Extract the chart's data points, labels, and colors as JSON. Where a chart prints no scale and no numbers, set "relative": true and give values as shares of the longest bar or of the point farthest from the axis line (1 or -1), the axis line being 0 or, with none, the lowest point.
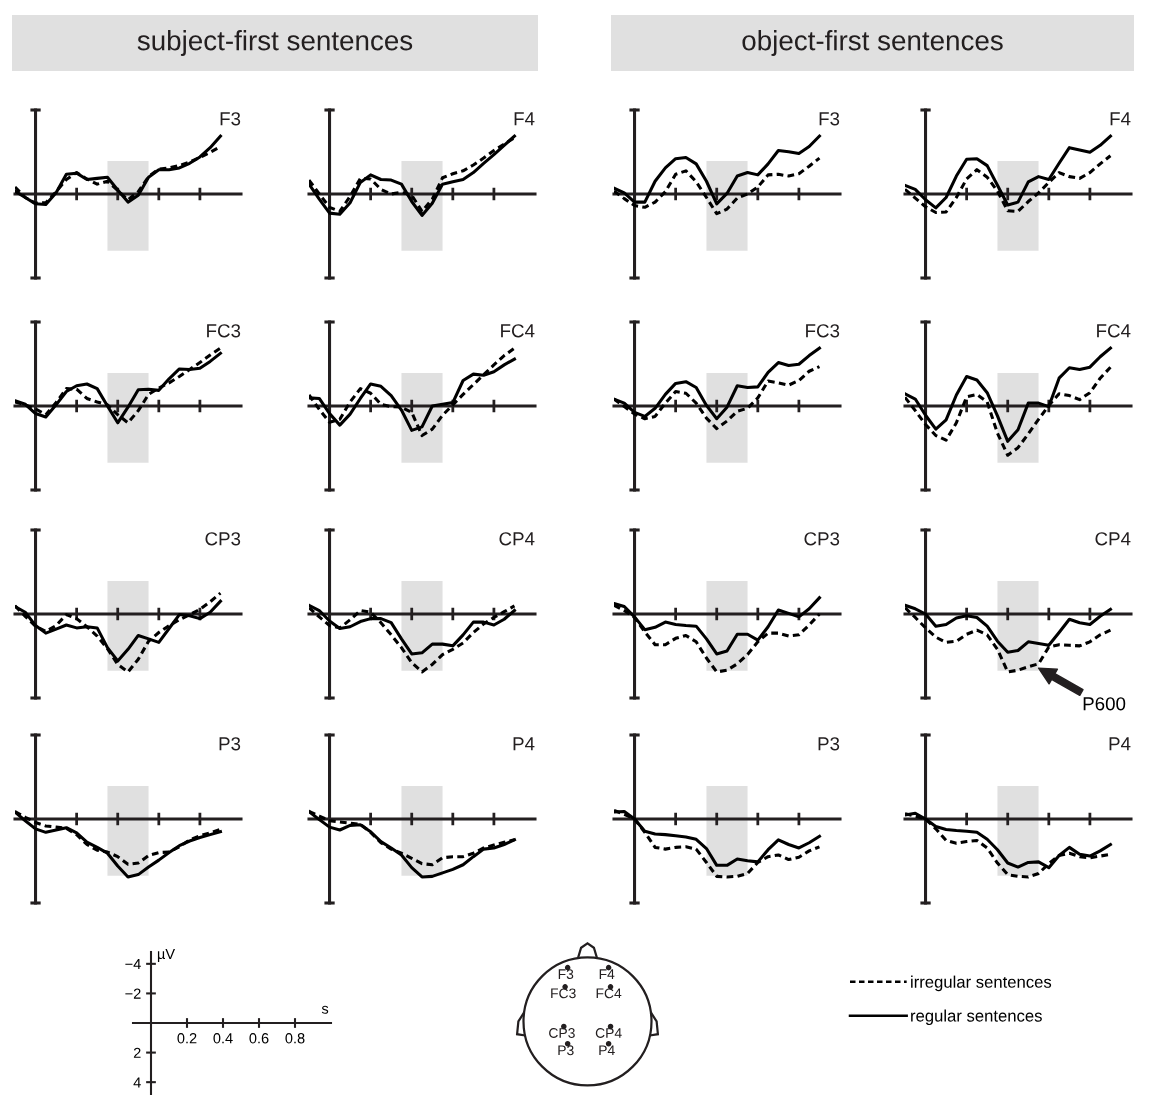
{
  "chart_data": [
    {
      "type": "line",
      "relative": true,
      "title": "F3",
      "subtitle": "subject-first sentences",
      "categories": [
        null,
        null,
        null,
        null,
        null,
        null,
        null,
        null,
        null,
        null,
        null,
        null,
        null,
        null,
        null,
        null,
        null,
        null,
        null,
        null,
        null
      ],
      "series": [
        {
          "color": "#000000",
          "line_style": "dashed",
          "values": [
            0.12,
            -0.06,
            -0.16,
            -0.15,
            0.04,
            0.25,
            0.37,
            0.26,
            0.17,
            0.22,
            0.06,
            -0.1,
            0.04,
            0.3,
            0.43,
            0.45,
            0.49,
            0.55,
            0.63,
            0.72,
            0.82
          ]
        },
        {
          "color": "#000000",
          "line_style": "solid",
          "values": [
            0.05,
            -0.06,
            -0.17,
            -0.18,
            0.02,
            0.34,
            0.36,
            0.25,
            0.27,
            0.29,
            0.07,
            -0.14,
            -0.02,
            0.29,
            0.42,
            0.42,
            0.45,
            0.53,
            0.64,
            0.8,
            1
          ]
        }
      ]
    },
    {
      "type": "line",
      "relative": true,
      "title": "F4",
      "categories": [
        null,
        null,
        null,
        null,
        null,
        null,
        null,
        null,
        null,
        null,
        null,
        null,
        null,
        null,
        null,
        null,
        null,
        null,
        null,
        null,
        null
      ],
      "series": [
        {
          "color": "#000000",
          "line_style": "dashed",
          "values": [
            0.24,
            0,
            -0.23,
            -0.3,
            -0.04,
            0.27,
            0.26,
            0.08,
            0,
            0.03,
            -0.02,
            -0.3,
            -0.09,
            0.28,
            0.35,
            0.4,
            0.5,
            0.62,
            0.75,
            0.86,
            0.97
          ]
        },
        {
          "color": "#000000",
          "line_style": "solid",
          "values": [
            0.17,
            -0.09,
            -0.33,
            -0.35,
            -0.15,
            0.2,
            0.33,
            0.25,
            0.24,
            0.17,
            -0.13,
            -0.37,
            -0.16,
            0.17,
            0.21,
            0.25,
            0.37,
            0.53,
            0.68,
            0.84,
            1
          ]
        }
      ]
    },
    {
      "type": "line",
      "relative": true,
      "title": "F3",
      "subtitle": "object-first sentences",
      "categories": [
        null,
        null,
        null,
        null,
        null,
        null,
        null,
        null,
        null,
        null,
        null,
        null,
        null,
        null,
        null,
        null,
        null,
        null,
        null,
        null,
        null
      ],
      "series": [
        {
          "color": "#000000",
          "line_style": "dashed",
          "values": [
            0.05,
            -0.08,
            -0.2,
            -0.23,
            -0.14,
            0.04,
            0.34,
            0.4,
            0.21,
            -0.06,
            -0.34,
            -0.26,
            -0.07,
            0,
            0.12,
            0.33,
            0.34,
            0.31,
            0.35,
            0.48,
            0.62
          ]
        },
        {
          "color": "#000000",
          "line_style": "solid",
          "values": [
            0.1,
            0.02,
            -0.14,
            -0.14,
            0.22,
            0.45,
            0.61,
            0.63,
            0.52,
            0.22,
            -0.17,
            0.01,
            0.31,
            0.37,
            0.33,
            0.52,
            0.75,
            0.73,
            0.7,
            0.82,
            1
          ]
        }
      ]
    },
    {
      "type": "line",
      "relative": true,
      "title": "F4",
      "categories": [
        null,
        null,
        null,
        null,
        null,
        null,
        null,
        null,
        null,
        null,
        null,
        null,
        null,
        null,
        null,
        null,
        null,
        null,
        null,
        null,
        null
      ],
      "series": [
        {
          "color": "#000000",
          "line_style": "dashed",
          "values": [
            0.08,
            -0.07,
            -0.22,
            -0.32,
            -0.31,
            -0.06,
            0.26,
            0.42,
            0.29,
            0.05,
            -0.29,
            -0.3,
            -0.13,
            0.02,
            0.2,
            0.37,
            0.3,
            0.27,
            0.37,
            0.52,
            0.66
          ]
        },
        {
          "color": "#000000",
          "line_style": "solid",
          "values": [
            0.15,
            0.08,
            -0.1,
            -0.24,
            -0.06,
            0.31,
            0.6,
            0.61,
            0.49,
            0.15,
            -0.19,
            -0.14,
            0.21,
            0.3,
            0.25,
            0.53,
            0.8,
            0.76,
            0.72,
            0.84,
            1
          ]
        }
      ]
    },
    {
      "type": "line",
      "relative": true,
      "title": "FC3",
      "categories": [
        null,
        null,
        null,
        null,
        null,
        null,
        null,
        null,
        null,
        null,
        null,
        null,
        null,
        null,
        null,
        null,
        null,
        null,
        null,
        null,
        null
      ],
      "series": [
        {
          "color": "#000000",
          "line_style": "dashed",
          "values": [
            0.07,
            0.02,
            -0.05,
            -0.15,
            0.06,
            0.3,
            0.29,
            0.13,
            0.07,
            0.02,
            -0.15,
            -0.29,
            -0.08,
            0.2,
            0.31,
            0.4,
            0.51,
            0.63,
            0.75,
            0.88,
            1
          ]
        },
        {
          "color": "#000000",
          "line_style": "solid",
          "values": [
            0.09,
            0.03,
            -0.13,
            -0.19,
            0.02,
            0.25,
            0.35,
            0.38,
            0.3,
            0,
            -0.29,
            -0.02,
            0.28,
            0.29,
            0.27,
            0.47,
            0.64,
            0.63,
            0.65,
            0.77,
            0.91
          ]
        }
      ]
    },
    {
      "type": "line",
      "relative": true,
      "title": "FC4",
      "categories": [
        null,
        null,
        null,
        null,
        null,
        null,
        null,
        null,
        null,
        null,
        null,
        null,
        null,
        null,
        null,
        null,
        null,
        null,
        null,
        null,
        null
      ],
      "series": [
        {
          "color": "#000000",
          "line_style": "dashed",
          "values": [
            0.19,
            -0.06,
            -0.28,
            -0.23,
            0.07,
            0.3,
            0.22,
            0.03,
            -0.01,
            -0.02,
            -0.11,
            -0.51,
            -0.4,
            -0.16,
            0.02,
            0.2,
            0.37,
            0.54,
            0.71,
            0.87,
            1
          ]
        },
        {
          "color": "#000000",
          "line_style": "solid",
          "values": [
            0.14,
            0.13,
            -0.13,
            -0.33,
            -0.14,
            0.13,
            0.38,
            0.34,
            0.18,
            -0.07,
            -0.42,
            -0.36,
            0,
            0.03,
            0.06,
            0.44,
            0.55,
            0.53,
            0.59,
            0.71,
            0.81
          ]
        }
      ]
    },
    {
      "type": "line",
      "relative": true,
      "title": "FC3",
      "categories": [
        null,
        null,
        null,
        null,
        null,
        null,
        null,
        null,
        null,
        null,
        null,
        null,
        null,
        null,
        null,
        null,
        null,
        null,
        null,
        null,
        null
      ],
      "series": [
        {
          "color": "#000000",
          "line_style": "dashed",
          "values": [
            0.12,
            -0.01,
            -0.14,
            -0.22,
            -0.18,
            0.05,
            0.25,
            0.22,
            0.05,
            -0.21,
            -0.39,
            -0.26,
            -0.09,
            -0.04,
            0.14,
            0.43,
            0.4,
            0.36,
            0.44,
            0.6,
            0.68
          ]
        },
        {
          "color": "#000000",
          "line_style": "solid",
          "values": [
            0.12,
            0.05,
            -0.11,
            -0.18,
            -0.04,
            0.2,
            0.39,
            0.42,
            0.32,
            0.01,
            -0.22,
            -0.02,
            0.35,
            0.32,
            0.33,
            0.58,
            0.75,
            0.7,
            0.72,
            0.87,
            1
          ]
        }
      ]
    },
    {
      "type": "line",
      "relative": true,
      "title": "FC4",
      "categories": [
        null,
        null,
        null,
        null,
        null,
        null,
        null,
        null,
        null,
        null,
        null,
        null,
        null,
        null,
        null,
        null,
        null,
        null,
        null,
        null,
        null
      ],
      "series": [
        {
          "color": "#000000",
          "line_style": "dashed",
          "values": [
            0.15,
            -0.08,
            -0.32,
            -0.51,
            -0.59,
            -0.29,
            0.16,
            0.2,
            0.07,
            -0.47,
            -0.85,
            -0.72,
            -0.48,
            -0.23,
            0.01,
            0.21,
            0.18,
            0.11,
            0.23,
            0.48,
            0.67
          ]
        },
        {
          "color": "#000000",
          "line_style": "solid",
          "values": [
            0.21,
            0.12,
            -0.16,
            -0.4,
            -0.24,
            0.19,
            0.51,
            0.45,
            0.23,
            -0.17,
            -0.61,
            -0.41,
            0.05,
            0.05,
            -0.01,
            0.48,
            0.66,
            0.63,
            0.67,
            0.85,
            1
          ]
        }
      ]
    },
    {
      "type": "line",
      "relative": true,
      "title": "CP3",
      "categories": [
        null,
        null,
        null,
        null,
        null,
        null,
        null,
        null,
        null,
        null,
        null,
        null,
        null,
        null,
        null,
        null,
        null,
        null,
        null,
        null,
        null
      ],
      "series": [
        {
          "color": "#000000",
          "line_style": "dashed",
          "values": [
            0.14,
            -0.04,
            -0.21,
            -0.3,
            -0.2,
            -0.01,
            -0.08,
            -0.22,
            -0.38,
            -0.6,
            -0.87,
            -1,
            -0.78,
            -0.47,
            -0.32,
            -0.2,
            -0.1,
            -0.01,
            0.08,
            0.21,
            0.36
          ]
        },
        {
          "color": "#000000",
          "line_style": "solid",
          "values": [
            0.13,
            0.03,
            -0.2,
            -0.33,
            -0.26,
            -0.19,
            -0.24,
            -0.22,
            -0.24,
            -0.58,
            -0.81,
            -0.61,
            -0.37,
            -0.43,
            -0.49,
            -0.25,
            -0.01,
            -0.03,
            -0.08,
            0.03,
            0.22
          ]
        }
      ]
    },
    {
      "type": "line",
      "relative": true,
      "title": "CP4",
      "categories": [
        null,
        null,
        null,
        null,
        null,
        null,
        null,
        null,
        null,
        null,
        null,
        null,
        null,
        null,
        null,
        null,
        null,
        null,
        null,
        null,
        null
      ],
      "series": [
        {
          "color": "#000000",
          "line_style": "dashed",
          "values": [
            0.11,
            -0.05,
            -0.2,
            -0.24,
            -0.1,
            0.06,
            0.03,
            -0.15,
            -0.36,
            -0.58,
            -0.84,
            -1,
            -0.87,
            -0.7,
            -0.61,
            -0.5,
            -0.32,
            -0.17,
            -0.06,
            0.04,
            0.14
          ]
        },
        {
          "color": "#000000",
          "line_style": "solid",
          "values": [
            0.15,
            0.06,
            -0.12,
            -0.25,
            -0.22,
            -0.13,
            -0.08,
            -0.08,
            -0.15,
            -0.43,
            -0.69,
            -0.67,
            -0.52,
            -0.52,
            -0.55,
            -0.36,
            -0.14,
            -0.14,
            -0.19,
            -0.09,
            0.06
          ]
        }
      ]
    },
    {
      "type": "line",
      "relative": true,
      "title": "CP3",
      "categories": [
        null,
        null,
        null,
        null,
        null,
        null,
        null,
        null,
        null,
        null,
        null,
        null,
        null,
        null,
        null,
        null,
        null,
        null,
        null,
        null,
        null
      ],
      "series": [
        {
          "color": "#000000",
          "line_style": "dashed",
          "values": [
            0.15,
            0.06,
            -0.06,
            -0.31,
            -0.53,
            -0.53,
            -0.42,
            -0.37,
            -0.48,
            -0.76,
            -1,
            -0.97,
            -0.86,
            -0.7,
            -0.48,
            -0.33,
            -0.33,
            -0.38,
            -0.36,
            -0.19,
            0
          ]
        },
        {
          "color": "#000000",
          "line_style": "solid",
          "values": [
            0.18,
            0.13,
            -0.05,
            -0.27,
            -0.23,
            -0.14,
            -0.18,
            -0.2,
            -0.21,
            -0.43,
            -0.69,
            -0.64,
            -0.35,
            -0.35,
            -0.45,
            -0.22,
            0.07,
            0.01,
            -0.05,
            0.09,
            0.28
          ]
        }
      ]
    },
    {
      "type": "line",
      "relative": true,
      "title": "CP4",
      "categories": [
        null,
        null,
        null,
        null,
        null,
        null,
        null,
        null,
        null,
        null,
        null,
        null,
        null,
        null,
        null,
        null,
        null,
        null,
        null,
        null,
        null
      ],
      "annotations": [
        "P600"
      ],
      "series": [
        {
          "color": "#000000",
          "line_style": "dashed",
          "values": [
            0.11,
            -0.06,
            -0.24,
            -0.4,
            -0.49,
            -0.47,
            -0.35,
            -0.28,
            -0.36,
            -0.61,
            -1,
            -0.97,
            -0.91,
            -0.86,
            -0.57,
            -0.53,
            -0.54,
            -0.55,
            -0.48,
            -0.36,
            -0.28
          ]
        },
        {
          "color": "#000000",
          "line_style": "solid",
          "values": [
            0.15,
            0.09,
            0,
            -0.21,
            -0.18,
            -0.07,
            -0.03,
            -0.06,
            -0.21,
            -0.47,
            -0.66,
            -0.63,
            -0.48,
            -0.51,
            -0.54,
            -0.32,
            -0.09,
            -0.15,
            -0.18,
            -0.04,
            0.08
          ]
        }
      ]
    },
    {
      "type": "line",
      "relative": true,
      "title": "P3",
      "categories": [
        null,
        null,
        null,
        null,
        null,
        null,
        null,
        null,
        null,
        null,
        null,
        null,
        null,
        null,
        null,
        null,
        null,
        null,
        null,
        null,
        null
      ],
      "series": [
        {
          "color": "#000000",
          "line_style": "dashed",
          "values": [
            0.13,
            0.03,
            -0.06,
            -0.12,
            -0.14,
            -0.16,
            -0.27,
            -0.44,
            -0.54,
            -0.57,
            -0.65,
            -0.78,
            -0.76,
            -0.63,
            -0.58,
            -0.57,
            -0.48,
            -0.36,
            -0.29,
            -0.24,
            -0.18
          ]
        },
        {
          "color": "#000000",
          "line_style": "solid",
          "values": [
            0.12,
            -0.03,
            -0.17,
            -0.23,
            -0.19,
            -0.15,
            -0.24,
            -0.4,
            -0.49,
            -0.59,
            -0.81,
            -1,
            -0.96,
            -0.83,
            -0.71,
            -0.58,
            -0.46,
            -0.38,
            -0.32,
            -0.27,
            -0.22
          ]
        }
      ]
    },
    {
      "type": "line",
      "relative": true,
      "title": "P4",
      "categories": [
        null,
        null,
        null,
        null,
        null,
        null,
        null,
        null,
        null,
        null,
        null,
        null,
        null,
        null,
        null,
        null,
        null,
        null,
        null,
        null,
        null
      ],
      "series": [
        {
          "color": "#000000",
          "line_style": "dashed",
          "values": [
            0.13,
            0.05,
            -0.03,
            -0.05,
            -0.07,
            -0.09,
            -0.23,
            -0.41,
            -0.52,
            -0.59,
            -0.68,
            -0.77,
            -0.79,
            -0.67,
            -0.65,
            -0.65,
            -0.59,
            -0.5,
            -0.45,
            -0.4,
            -0.36
          ]
        },
        {
          "color": "#000000",
          "line_style": "solid",
          "values": [
            0.13,
            -0.01,
            -0.14,
            -0.19,
            -0.11,
            -0.1,
            -0.22,
            -0.39,
            -0.5,
            -0.62,
            -0.84,
            -1,
            -0.99,
            -0.93,
            -0.87,
            -0.79,
            -0.65,
            -0.52,
            -0.5,
            -0.44,
            -0.36
          ]
        }
      ]
    },
    {
      "type": "line",
      "relative": true,
      "title": "P3",
      "categories": [
        null,
        null,
        null,
        null,
        null,
        null,
        null,
        null,
        null,
        null,
        null,
        null,
        null,
        null,
        null,
        null,
        null,
        null,
        null,
        null,
        null
      ],
      "series": [
        {
          "color": "#000000",
          "line_style": "dashed",
          "values": [
            0.15,
            0.08,
            0,
            -0.23,
            -0.49,
            -0.52,
            -0.49,
            -0.48,
            -0.52,
            -0.75,
            -0.99,
            -1,
            -0.99,
            -0.94,
            -0.75,
            -0.65,
            -0.62,
            -0.7,
            -0.66,
            -0.55,
            -0.48
          ]
        },
        {
          "color": "#000000",
          "line_style": "solid",
          "values": [
            0.12,
            0.13,
            0,
            -0.21,
            -0.26,
            -0.27,
            -0.29,
            -0.31,
            -0.35,
            -0.51,
            -0.8,
            -0.8,
            -0.69,
            -0.72,
            -0.74,
            -0.53,
            -0.36,
            -0.44,
            -0.5,
            -0.41,
            -0.3
          ]
        }
      ]
    },
    {
      "type": "line",
      "relative": true,
      "title": "P4",
      "legend": "bottom left",
      "categories": [
        null,
        null,
        null,
        null,
        null,
        null,
        null,
        null,
        null,
        null,
        null,
        null,
        null,
        null,
        null,
        null,
        null,
        null,
        null,
        null,
        null
      ],
      "series": [
        {
          "name": "irregular sentences",
          "color": "#000000",
          "line_style": "dashed",
          "values": [
            0.09,
            0.05,
            0,
            -0.17,
            -0.37,
            -0.42,
            -0.39,
            -0.37,
            -0.5,
            -0.76,
            -0.96,
            -0.99,
            -1,
            -0.94,
            -0.77,
            -0.63,
            -0.59,
            -0.65,
            -0.67,
            -0.64,
            -0.61
          ]
        },
        {
          "name": "regular sentences",
          "color": "#000000",
          "line_style": "solid",
          "values": [
            0.07,
            0.1,
            0,
            -0.13,
            -0.18,
            -0.2,
            -0.21,
            -0.23,
            -0.35,
            -0.53,
            -0.76,
            -0.83,
            -0.75,
            -0.74,
            -0.84,
            -0.63,
            -0.49,
            -0.61,
            -0.64,
            -0.55,
            -0.44
          ]
        }
      ]
    },
    {
      "type": "line",
      "xlabel": "s",
      "ylabel": "µV",
      "xlim": [
        -0.1,
        1.0
      ],
      "ylim": [
        4.8,
        -4.8
      ],
      "xticks": [
        0.2,
        0.4,
        0.6,
        0.8
      ],
      "yticks": [
        {
          "value": -4,
          "label": "−4"
        },
        {
          "value": -2,
          "label": "−2"
        },
        2,
        4
      ]
    },
    {
      "type": "other",
      "annotations": [
        "F3",
        "F4",
        "FC3",
        "FC4",
        "CP3",
        "CP4",
        "P3",
        "P4"
      ]
    }
  ]
}
